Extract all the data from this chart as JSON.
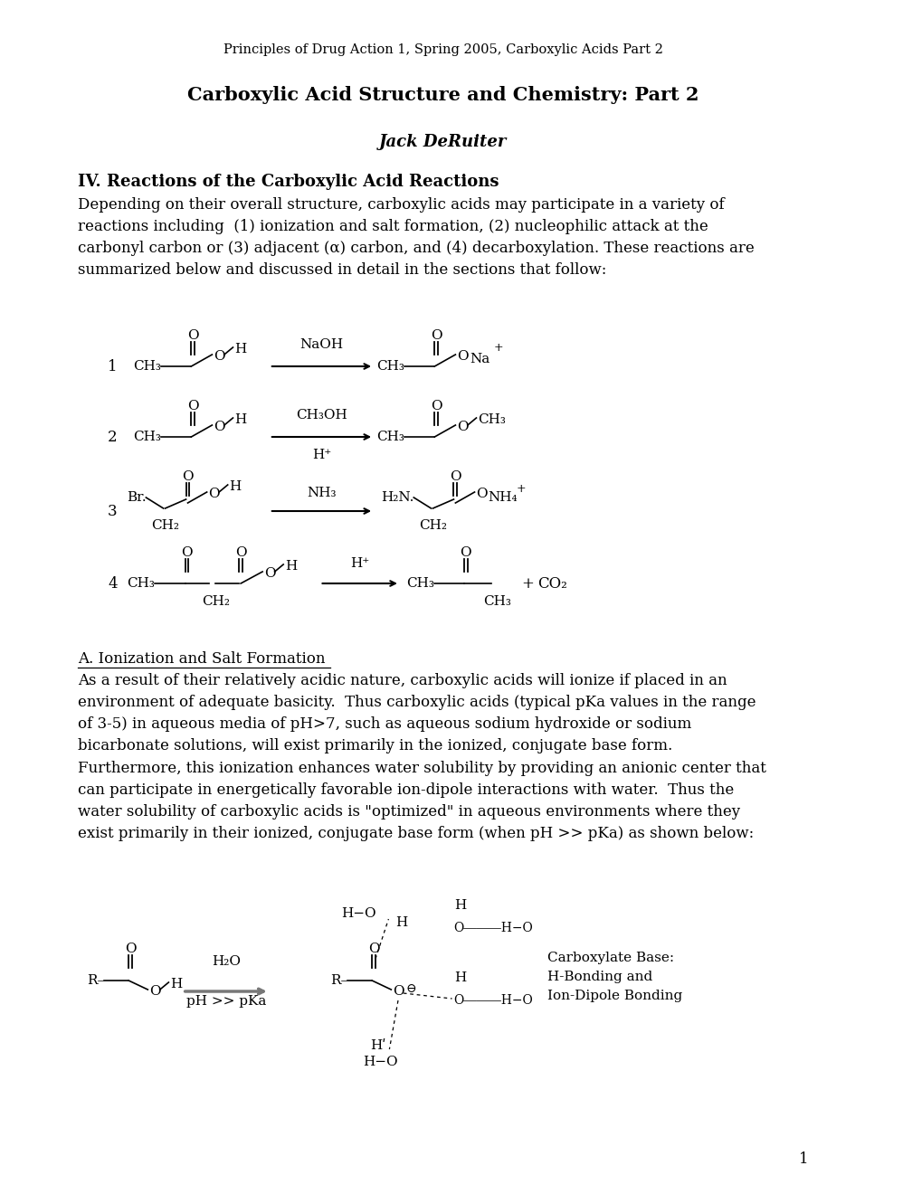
{
  "page_width": 10.2,
  "page_height": 13.2,
  "dpi": 100,
  "bg_color": "#ffffff",
  "text_color": "#000000",
  "header": "Principles of Drug Action 1, Spring 2005, Carboxylic Acids Part 2",
  "title": "Carboxylic Acid Structure and Chemistry: Part 2",
  "author": "Jack DeRuiter",
  "section_heading": "IV. Reactions of the Carboxylic Acid Reactions",
  "paragraph1": "Depending on their overall structure, carboxylic acids may participate in a variety of\nreactions including  (1) ionization and salt formation, (2) nucleophilic attack at the\ncarbonyl carbon or (3) adjacent (α) carbon, and (4) decarboxylation. These reactions are\nsummarized below and discussed in detail in the sections that follow:",
  "section_a_heading": "A. Ionization and Salt Formation",
  "paragraph2": "As a result of their relatively acidic nature, carboxylic acids will ionize if placed in an\nenvironment of adequate basicity.  Thus carboxylic acids (typical pKa values in the range\nof 3-5) in aqueous media of pH>7, such as aqueous sodium hydroxide or sodium\nbicarbonate solutions, will exist primarily in the ionized, conjugate base form.\nFurthermore, this ionization enhances water solubility by providing an anionic center that\ncan participate in energetically favorable ion-dipole interactions with water.  Thus the\nwater solubility of carboxylic acids is \"optimized\" in aqueous environments where they\nexist primarily in their ionized, conjugate base form (when pH >> pKa) as shown below:",
  "page_number": "1"
}
